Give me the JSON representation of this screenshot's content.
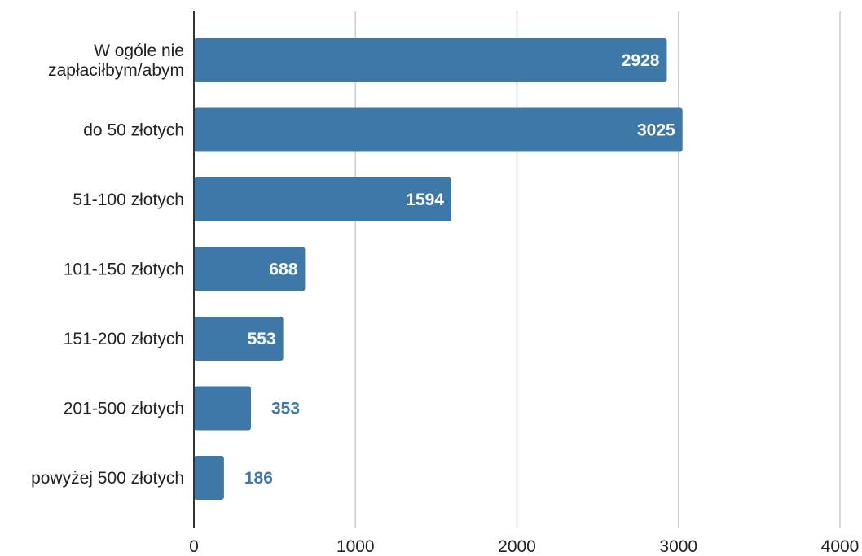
{
  "chart_data": {
    "type": "bar",
    "orientation": "horizontal",
    "categories": [
      [
        "W ogóle nie",
        "zapłaciłbym/abym"
      ],
      [
        "do 50 złotych"
      ],
      [
        "51-100 złotych"
      ],
      [
        "101-150 złotych"
      ],
      [
        "151-200 złotych"
      ],
      [
        "201-500 złotych"
      ],
      [
        "powyżej 500 złotych"
      ]
    ],
    "values": [
      2928,
      3025,
      1594,
      688,
      553,
      353,
      186
    ],
    "value_labels": [
      "2928",
      "3025",
      "1594",
      "688",
      "553",
      "353",
      "186"
    ],
    "xlim": [
      0,
      4000
    ],
    "x_ticks": [
      0,
      1000,
      2000,
      3000,
      4000
    ],
    "x_tick_labels": [
      "0",
      "1000",
      "2000",
      "3000",
      "4000"
    ],
    "grid": "vertical",
    "legend": "none",
    "colors": {
      "bar": "#3d78a8",
      "bar_label_inside": "#ffffff",
      "bar_label_outside": "#3d78a8",
      "grid": "#cccccc",
      "axis": "#333333"
    }
  }
}
